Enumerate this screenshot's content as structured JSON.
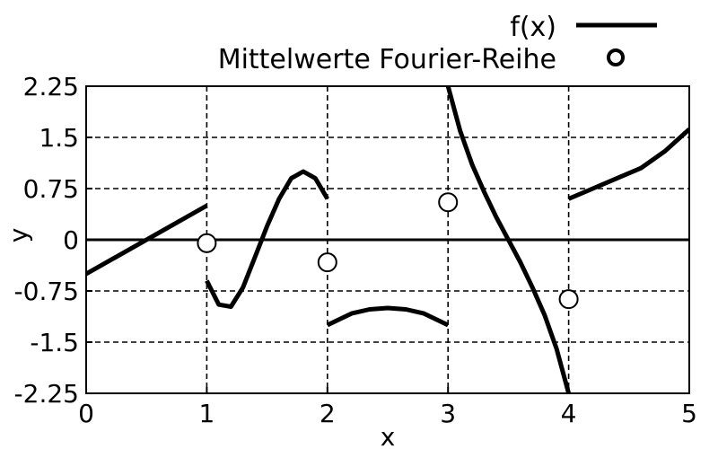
{
  "chart_data": {
    "type": "line",
    "title": "",
    "xlabel": "x",
    "ylabel": "y",
    "xlim": [
      0,
      5
    ],
    "ylim": [
      -2.25,
      2.25
    ],
    "grid": true,
    "legend_position": "top-right",
    "x_ticks": [
      0,
      1,
      2,
      3,
      4,
      5
    ],
    "x_tick_labels": [
      "0",
      "1",
      "2",
      "3",
      "4",
      "5"
    ],
    "y_ticks": [
      2.25,
      1.5,
      0.75,
      0,
      -0.75,
      -1.5,
      -2.25
    ],
    "y_tick_labels": [
      "2.25",
      "1.5",
      "0.75",
      "0",
      "-0.75",
      "-1.5",
      "-2.25"
    ],
    "series": [
      {
        "name": "f(x)",
        "kind": "line",
        "color": "#000000",
        "segments": [
          [
            [
              0,
              -0.5
            ],
            [
              1,
              0.5
            ]
          ],
          [
            [
              1.0,
              -0.6
            ],
            [
              1.1,
              -0.95
            ],
            [
              1.2,
              -0.98
            ],
            [
              1.3,
              -0.7
            ],
            [
              1.4,
              -0.25
            ],
            [
              1.5,
              0.2
            ],
            [
              1.6,
              0.6
            ],
            [
              1.7,
              0.9
            ],
            [
              1.8,
              1.0
            ],
            [
              1.9,
              0.9
            ],
            [
              2.0,
              0.6
            ]
          ],
          [
            [
              2.0,
              -1.25
            ],
            [
              2.2,
              -1.08
            ],
            [
              2.35,
              -1.02
            ],
            [
              2.5,
              -1.0
            ],
            [
              2.65,
              -1.02
            ],
            [
              2.8,
              -1.08
            ],
            [
              3.0,
              -1.25
            ]
          ],
          [
            [
              3.0,
              2.25
            ],
            [
              3.1,
              1.6
            ],
            [
              3.2,
              1.1
            ],
            [
              3.3,
              0.7
            ],
            [
              3.4,
              0.33
            ],
            [
              3.5,
              0.0
            ],
            [
              3.6,
              -0.33
            ],
            [
              3.7,
              -0.7
            ],
            [
              3.8,
              -1.1
            ],
            [
              3.9,
              -1.6
            ],
            [
              4.0,
              -2.25
            ]
          ],
          [
            [
              4.0,
              0.6
            ],
            [
              4.2,
              0.75
            ],
            [
              4.4,
              0.9
            ],
            [
              4.6,
              1.05
            ],
            [
              4.8,
              1.3
            ],
            [
              5.0,
              1.62
            ]
          ]
        ]
      },
      {
        "name": "Mittelwerte Fourier-Reihe",
        "kind": "points",
        "color": "#000000",
        "x": [
          1,
          2,
          3,
          4
        ],
        "y": [
          -0.05,
          -0.33,
          0.55,
          -0.87
        ]
      }
    ]
  }
}
